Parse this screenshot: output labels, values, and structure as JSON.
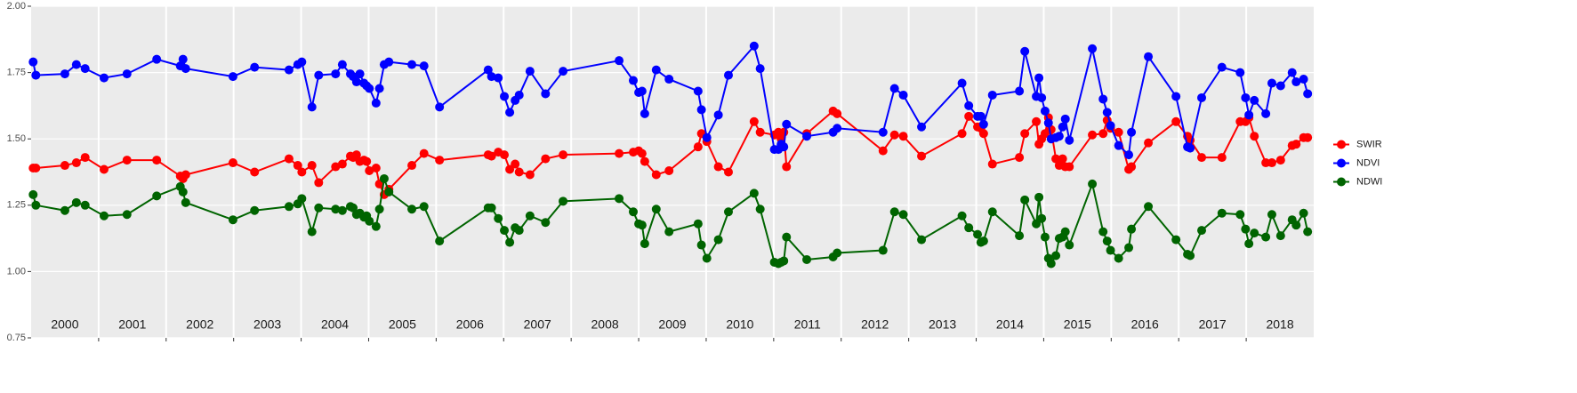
{
  "chart_data": {
    "type": "line",
    "x": [
      2000.03,
      2000.07,
      2000.5,
      2000.67,
      2000.8,
      2001.08,
      2001.42,
      2001.86,
      2002.21,
      2002.25,
      2002.29,
      2002.99,
      2003.31,
      2003.82,
      2003.95,
      2004.01,
      2004.16,
      2004.26,
      2004.51,
      2004.61,
      2004.73,
      2004.77,
      2004.82,
      2004.87,
      2004.93,
      2004.97,
      2005.01,
      2005.11,
      2005.16,
      2005.23,
      2005.3,
      2005.64,
      2005.82,
      2006.05,
      2006.77,
      2006.82,
      2006.92,
      2007.01,
      2007.09,
      2007.17,
      2007.23,
      2007.39,
      2007.62,
      2007.88,
      2008.71,
      2008.92,
      2009.0,
      2009.05,
      2009.09,
      2009.26,
      2009.45,
      2009.88,
      2009.93,
      2010.01,
      2010.18,
      2010.33,
      2010.71,
      2010.8,
      2011.01,
      2011.07,
      2011.11,
      2011.15,
      2011.19,
      2011.49,
      2011.88,
      2011.94,
      2012.62,
      2012.79,
      2012.92,
      2013.19,
      2013.79,
      2013.89,
      2014.02,
      2014.07,
      2014.11,
      2014.24,
      2014.64,
      2014.72,
      2014.89,
      2014.93,
      2014.97,
      2015.02,
      2015.07,
      2015.11,
      2015.18,
      2015.23,
      2015.28,
      2015.32,
      2015.38,
      2015.72,
      2015.88,
      2015.94,
      2015.99,
      2016.11,
      2016.26,
      2016.3,
      2016.55,
      2016.96,
      2017.13,
      2017.17,
      2017.34,
      2017.64,
      2017.91,
      2017.99,
      2018.04,
      2018.12,
      2018.29,
      2018.38,
      2018.51,
      2018.68,
      2018.74,
      2018.85,
      2018.91
    ],
    "series": [
      {
        "name": "SWIR",
        "color": "#ff0000",
        "values": [
          1.39,
          1.39,
          1.4,
          1.41,
          1.43,
          1.385,
          1.42,
          1.42,
          1.36,
          1.35,
          1.365,
          1.41,
          1.375,
          1.425,
          1.4,
          1.375,
          1.4,
          1.335,
          1.395,
          1.405,
          1.435,
          1.43,
          1.44,
          1.415,
          1.42,
          1.415,
          1.38,
          1.39,
          1.33,
          1.29,
          1.31,
          1.4,
          1.445,
          1.42,
          1.44,
          1.435,
          1.45,
          1.44,
          1.385,
          1.405,
          1.375,
          1.365,
          1.425,
          1.44,
          1.445,
          1.45,
          1.455,
          1.445,
          1.415,
          1.365,
          1.38,
          1.47,
          1.52,
          1.49,
          1.395,
          1.375,
          1.565,
          1.525,
          1.515,
          1.525,
          1.5,
          1.525,
          1.395,
          1.52,
          1.605,
          1.595,
          1.455,
          1.515,
          1.51,
          1.435,
          1.52,
          1.585,
          1.545,
          1.54,
          1.52,
          1.405,
          1.43,
          1.52,
          1.565,
          1.48,
          1.5,
          1.52,
          1.58,
          1.535,
          1.425,
          1.4,
          1.425,
          1.395,
          1.395,
          1.515,
          1.52,
          1.57,
          1.54,
          1.525,
          1.385,
          1.395,
          1.485,
          1.565,
          1.51,
          1.495,
          1.43,
          1.43,
          1.565,
          1.565,
          1.58,
          1.51,
          1.41,
          1.41,
          1.42,
          1.475,
          1.48,
          1.505,
          1.505
        ]
      },
      {
        "name": "NDVI",
        "color": "#0000ff",
        "values": [
          1.79,
          1.74,
          1.745,
          1.78,
          1.765,
          1.73,
          1.745,
          1.8,
          1.775,
          1.8,
          1.765,
          1.735,
          1.77,
          1.76,
          1.78,
          1.79,
          1.62,
          1.74,
          1.745,
          1.78,
          1.745,
          1.735,
          1.715,
          1.745,
          1.71,
          1.7,
          1.69,
          1.635,
          1.69,
          1.78,
          1.79,
          1.78,
          1.775,
          1.62,
          1.76,
          1.735,
          1.73,
          1.66,
          1.6,
          1.645,
          1.665,
          1.755,
          1.67,
          1.755,
          1.795,
          1.72,
          1.675,
          1.68,
          1.595,
          1.76,
          1.725,
          1.68,
          1.61,
          1.505,
          1.59,
          1.74,
          1.85,
          1.765,
          1.46,
          1.46,
          1.48,
          1.47,
          1.555,
          1.51,
          1.525,
          1.54,
          1.525,
          1.69,
          1.665,
          1.545,
          1.71,
          1.625,
          1.585,
          1.585,
          1.555,
          1.665,
          1.68,
          1.83,
          1.66,
          1.73,
          1.655,
          1.605,
          1.56,
          1.5,
          1.505,
          1.51,
          1.545,
          1.575,
          1.495,
          1.84,
          1.65,
          1.6,
          1.55,
          1.475,
          1.44,
          1.525,
          1.81,
          1.66,
          1.47,
          1.465,
          1.655,
          1.77,
          1.75,
          1.655,
          1.59,
          1.645,
          1.595,
          1.71,
          1.7,
          1.75,
          1.715,
          1.725,
          1.67
        ]
      },
      {
        "name": "NDWI",
        "color": "#006400",
        "values": [
          1.29,
          1.25,
          1.23,
          1.26,
          1.25,
          1.21,
          1.215,
          1.285,
          1.32,
          1.3,
          1.26,
          1.195,
          1.23,
          1.245,
          1.255,
          1.275,
          1.15,
          1.24,
          1.235,
          1.23,
          1.245,
          1.24,
          1.215,
          1.22,
          1.205,
          1.21,
          1.19,
          1.17,
          1.235,
          1.35,
          1.3,
          1.235,
          1.245,
          1.115,
          1.24,
          1.24,
          1.2,
          1.155,
          1.11,
          1.165,
          1.155,
          1.21,
          1.185,
          1.265,
          1.275,
          1.225,
          1.18,
          1.175,
          1.105,
          1.235,
          1.15,
          1.18,
          1.1,
          1.05,
          1.12,
          1.225,
          1.295,
          1.235,
          1.035,
          1.03,
          1.035,
          1.04,
          1.13,
          1.045,
          1.055,
          1.07,
          1.08,
          1.225,
          1.215,
          1.12,
          1.21,
          1.165,
          1.14,
          1.11,
          1.115,
          1.225,
          1.135,
          1.27,
          1.18,
          1.28,
          1.2,
          1.13,
          1.05,
          1.03,
          1.06,
          1.125,
          1.13,
          1.15,
          1.1,
          1.33,
          1.15,
          1.115,
          1.08,
          1.05,
          1.09,
          1.16,
          1.245,
          1.12,
          1.065,
          1.06,
          1.155,
          1.22,
          1.215,
          1.16,
          1.105,
          1.145,
          1.13,
          1.215,
          1.135,
          1.195,
          1.175,
          1.22,
          1.15
        ]
      }
    ],
    "year_labels": [
      "2000",
      "2001",
      "2002",
      "2003",
      "2004",
      "2005",
      "2006",
      "2007",
      "2008",
      "2009",
      "2010",
      "2011",
      "2012",
      "2013",
      "2014",
      "2015",
      "2016",
      "2017",
      "2018"
    ],
    "xlim": [
      2000,
      2019
    ],
    "xticks": [
      2001,
      2002,
      2003,
      2004,
      2005,
      2006,
      2007,
      2008,
      2009,
      2010,
      2011,
      2012,
      2013,
      2014,
      2015,
      2016,
      2017,
      2018
    ],
    "ylim": [
      0.75,
      2.0
    ],
    "yticks": [
      {
        "value": 0.75,
        "label": "0.75"
      },
      {
        "value": 1.0,
        "label": "1.00"
      },
      {
        "value": 1.25,
        "label": "1.25"
      },
      {
        "value": 1.5,
        "label": "1.50"
      },
      {
        "value": 1.75,
        "label": "1.75"
      },
      {
        "value": 2.0,
        "label": "2.00"
      }
    ],
    "grid": true,
    "legend": "right"
  }
}
